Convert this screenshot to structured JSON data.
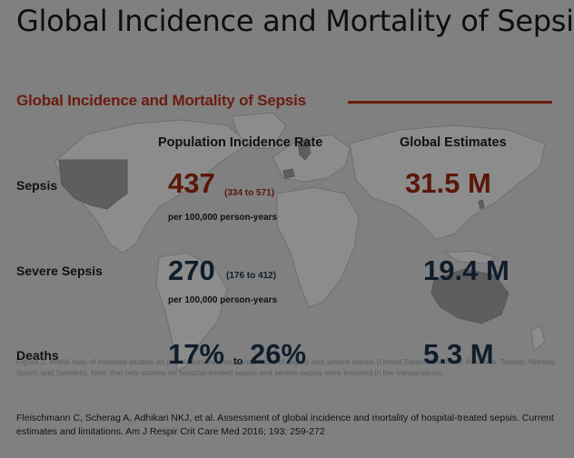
{
  "slide": {
    "title": "Global Incidence and Mortality of Sepsis",
    "subtitle": "Global Incidence and Mortality of Sepsis",
    "columns": {
      "incidence": "Population Incidence Rate",
      "estimates": "Global Estimates"
    },
    "rows": {
      "sepsis": {
        "label": "Sepsis",
        "rate": "437",
        "range": "(334 to 571)",
        "unit": "per 100,000 person-years",
        "estimate": "31.5 M"
      },
      "severe": {
        "label": "Severe Sepsis",
        "rate": "270",
        "range": "(176 to 412)",
        "unit": "per 100,000 person-years",
        "estimate": "19.4 M"
      },
      "deaths": {
        "label": "Deaths",
        "low": "17%",
        "to": "to",
        "high": "26%",
        "estimate": "5.3 M"
      }
    },
    "figure_caption": "Figure 2. World map of included studies on population-level incidence rates of sepsis and severe sepsis (United States, Germany, Australia, Taiwan, Norway, Spain, and Sweden). Note that only studies on hospital-treated sepsis and severe sepsis were included in the metaanalysis.",
    "citation": "Fleischmann C, Scherag A, Adhikari NKJ, et al. Assessment of global incidence and mortality of hospital-treated sepsis. Current estimates and limitations. Am J Respir Crit Care Med 2016; 193: 259-272",
    "colors": {
      "background": "#808080",
      "accent_red": "#5a1708",
      "navy": "#0f1d2b",
      "highlighted_country": "#5e5e5e"
    }
  }
}
